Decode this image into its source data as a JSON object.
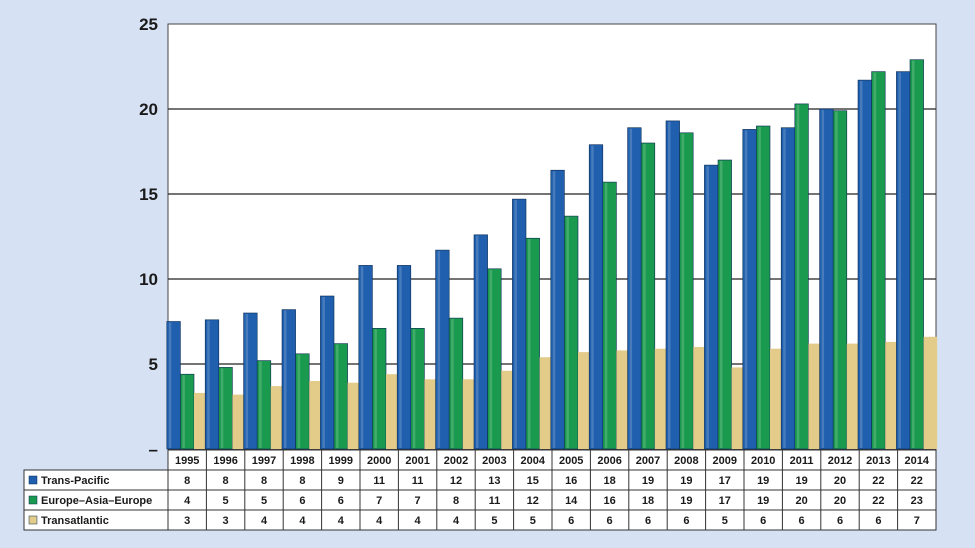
{
  "chart_data": {
    "type": "bar",
    "title": "",
    "xlabel": "",
    "ylabel": "",
    "ylim": [
      0,
      25
    ],
    "yticks": [
      {
        "value": 0,
        "label": "–"
      },
      {
        "value": 5,
        "label": "5"
      },
      {
        "value": 10,
        "label": "10"
      },
      {
        "value": 15,
        "label": "15"
      },
      {
        "value": 20,
        "label": "20"
      },
      {
        "value": 25,
        "label": "25"
      }
    ],
    "grid": "horizontal",
    "legend": "table-below",
    "categories": [
      "1995",
      "1996",
      "1997",
      "1998",
      "1999",
      "2000",
      "2001",
      "2002",
      "2003",
      "2004",
      "2005",
      "2006",
      "2007",
      "2008",
      "2009",
      "2010",
      "2011",
      "2012",
      "2013",
      "2014"
    ],
    "series": [
      {
        "name": "Trans-Pacific",
        "color": "#1f5fae",
        "values": [
          7.5,
          7.6,
          8.0,
          8.2,
          9.0,
          10.8,
          10.8,
          11.7,
          12.6,
          14.7,
          16.4,
          17.9,
          18.9,
          19.3,
          16.7,
          18.8,
          18.9,
          20.0,
          21.7,
          22.2
        ],
        "table_values": [
          "8",
          "8",
          "8",
          "8",
          "9",
          "11",
          "11",
          "12",
          "13",
          "15",
          "16",
          "18",
          "19",
          "19",
          "17",
          "19",
          "19",
          "20",
          "22",
          "22"
        ]
      },
      {
        "name": "Europe–Asia–Europe",
        "color": "#1a9a4e",
        "values": [
          4.4,
          4.8,
          5.2,
          5.6,
          6.2,
          7.1,
          7.1,
          7.7,
          10.6,
          12.4,
          13.7,
          15.7,
          18.0,
          18.6,
          17.0,
          19.0,
          20.3,
          19.9,
          22.2,
          22.9
        ],
        "table_values": [
          "4",
          "5",
          "5",
          "6",
          "6",
          "7",
          "7",
          "8",
          "11",
          "12",
          "14",
          "16",
          "18",
          "19",
          "17",
          "19",
          "20",
          "20",
          "22",
          "23"
        ]
      },
      {
        "name": "Transatlantic",
        "color": "#e3cb8a",
        "values": [
          3.3,
          3.2,
          3.7,
          4.0,
          3.9,
          4.4,
          4.1,
          4.1,
          4.6,
          5.4,
          5.7,
          5.8,
          5.9,
          6.0,
          4.8,
          5.9,
          6.2,
          6.2,
          6.3,
          6.6
        ],
        "table_values": [
          "3",
          "3",
          "4",
          "4",
          "4",
          "4",
          "4",
          "4",
          "5",
          "5",
          "6",
          "6",
          "6",
          "6",
          "5",
          "6",
          "6",
          "6",
          "6",
          "7"
        ]
      }
    ]
  }
}
